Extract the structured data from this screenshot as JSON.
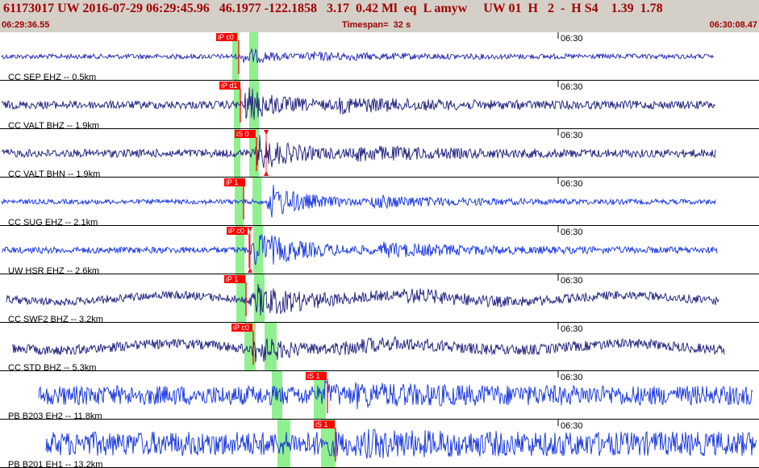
{
  "header": {
    "title": "61173017 UW 2016-07-29 06:29:45.96   46.1977 -122.1858   3.17  0.42 Ml  eq  L amyw     UW 01  H   2  -  H S4    1.39  1.78",
    "start_time": "06:29:36.55",
    "timespan": "Timespan=  32 s",
    "end_time": "06:30:08.47"
  },
  "chart_data": {
    "type": "line",
    "tick_label": "06:30",
    "colors": {
      "trace_blue": "#1030e0",
      "trace_navy": "#1a1a7a",
      "pick": "#ff0000",
      "window": "#90f090",
      "header_text": "#a00000"
    },
    "traces": [
      {
        "label": "CC SEP EHZ -- 0.5km",
        "color": "navy_blue",
        "pick_label": "iP c0"
      },
      {
        "label": "CC VALT BHZ -- 1.9km",
        "color": "navy",
        "pick_label": "iP d1"
      },
      {
        "label": "CC VALT BHN -- 1.9km",
        "color": "navy",
        "pick_label": "iS 0"
      },
      {
        "label": "CC SUG EHZ -- 2.1km",
        "color": "blue",
        "pick_label": "iP 1"
      },
      {
        "label": "UW HSR EHZ -- 2.6km",
        "color": "blue",
        "pick_label": "iP c0"
      },
      {
        "label": "CC SWF2 BHZ -- 3.2km",
        "color": "navy",
        "pick_label": "iP 1"
      },
      {
        "label": "CC STD BHZ -- 5.3km",
        "color": "navy",
        "pick_label": "iP c0"
      },
      {
        "label": "PB B203 EH2 -- 11.8km",
        "color": "blue",
        "pick_label": "iS 1"
      },
      {
        "label": "PB B201 EH1 -- 13.2km",
        "color": "blue",
        "pick_label": "iS 1"
      }
    ]
  }
}
